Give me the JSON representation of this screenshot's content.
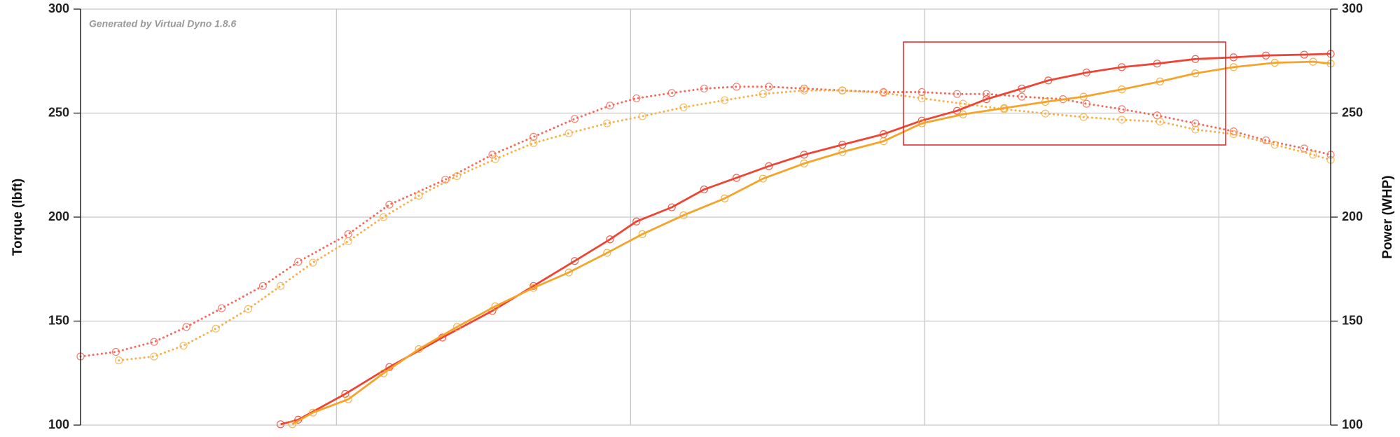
{
  "chart_data": {
    "type": "line",
    "watermark": "Generated by Virtual Dyno 1.8.6",
    "ylabel": "Torque (lbft)",
    "y2label": "Power (WHP)",
    "xlim": [
      0.13,
      4.38
    ],
    "xgrid": [
      1,
      2,
      3,
      4
    ],
    "ylim": [
      100,
      300
    ],
    "yticks": [
      100,
      150,
      200,
      250,
      300
    ],
    "y2lim": [
      100,
      300
    ],
    "y2ticks": [
      100,
      150,
      200,
      250,
      300
    ],
    "grid": true,
    "series": [
      {
        "color": "#f26a5a",
        "style": "dotted",
        "x": [
          0.13,
          0.25,
          0.38,
          0.49,
          0.61,
          0.75,
          0.87,
          1.04,
          1.18,
          1.37,
          1.53,
          1.67,
          1.81,
          1.93,
          2.02,
          2.14,
          2.25,
          2.36,
          2.47,
          2.59,
          2.72,
          2.86,
          2.99,
          3.11,
          3.21,
          3.33,
          3.47,
          3.55,
          3.67,
          3.79,
          3.92,
          4.05,
          4.16,
          4.29,
          4.38
        ],
        "values": [
          133.0,
          135.2,
          140.0,
          147.2,
          156.2,
          166.9,
          178.5,
          191.8,
          206.0,
          218.0,
          230.0,
          238.6,
          247.2,
          253.6,
          257.1,
          259.7,
          261.8,
          262.7,
          262.7,
          261.8,
          260.9,
          260.1,
          260.1,
          259.2,
          259.2,
          257.9,
          256.7,
          254.5,
          251.9,
          248.9,
          245.1,
          241.2,
          236.9,
          233.0,
          230.0
        ]
      },
      {
        "color": "#f7b04a",
        "style": "dotted",
        "x": [
          0.26,
          0.38,
          0.48,
          0.59,
          0.7,
          0.81,
          0.92,
          1.04,
          1.16,
          1.28,
          1.41,
          1.54,
          1.67,
          1.79,
          1.92,
          2.04,
          2.18,
          2.32,
          2.45,
          2.59,
          2.72,
          2.86,
          2.99,
          3.13,
          3.27,
          3.41,
          3.54,
          3.67,
          3.8,
          3.92,
          4.05,
          4.19,
          4.32,
          4.38
        ],
        "values": [
          131.1,
          133.0,
          138.2,
          146.4,
          155.8,
          166.9,
          178.1,
          188.4,
          200.0,
          210.3,
          219.7,
          227.9,
          235.6,
          240.3,
          245.1,
          248.5,
          252.8,
          256.2,
          259.2,
          260.9,
          260.9,
          259.7,
          257.1,
          254.5,
          251.9,
          249.8,
          248.1,
          246.8,
          245.9,
          242.1,
          239.9,
          234.8,
          230.0,
          227.5
        ]
      },
      {
        "color": "#ee4433",
        "style": "solid",
        "axis": "y2",
        "x": [
          0.81,
          0.87,
          1.03,
          1.18,
          1.36,
          1.53,
          1.67,
          1.81,
          1.93,
          2.02,
          2.14,
          2.25,
          2.36,
          2.47,
          2.59,
          2.72,
          2.86,
          2.99,
          3.11,
          3.21,
          3.33,
          3.42,
          3.55,
          3.67,
          3.79,
          3.92,
          4.05,
          4.16,
          4.29,
          4.38
        ],
        "values": [
          100.4,
          102.6,
          115.0,
          127.9,
          142.1,
          154.9,
          166.9,
          178.9,
          189.3,
          197.9,
          204.7,
          213.3,
          218.9,
          224.5,
          230.0,
          234.8,
          239.9,
          246.4,
          251.1,
          256.7,
          261.8,
          265.7,
          269.5,
          272.1,
          273.8,
          276.0,
          276.8,
          277.7,
          278.1,
          278.5
        ]
      },
      {
        "color": "#f5a42a",
        "style": "solid",
        "axis": "y2",
        "x": [
          0.85,
          0.92,
          1.04,
          1.16,
          1.28,
          1.41,
          1.54,
          1.67,
          1.79,
          1.92,
          2.04,
          2.18,
          2.32,
          2.45,
          2.59,
          2.72,
          2.86,
          2.99,
          3.13,
          3.27,
          3.41,
          3.54,
          3.67,
          3.8,
          3.92,
          4.05,
          4.19,
          4.32,
          4.38
        ],
        "values": [
          100.4,
          106.0,
          112.4,
          124.9,
          136.5,
          147.2,
          157.1,
          166.0,
          173.4,
          182.8,
          191.8,
          200.9,
          209.0,
          218.5,
          225.8,
          231.3,
          236.5,
          245.1,
          249.4,
          252.4,
          255.4,
          257.9,
          261.4,
          265.2,
          269.1,
          272.1,
          274.2,
          274.7,
          273.8
        ]
      }
    ]
  }
}
